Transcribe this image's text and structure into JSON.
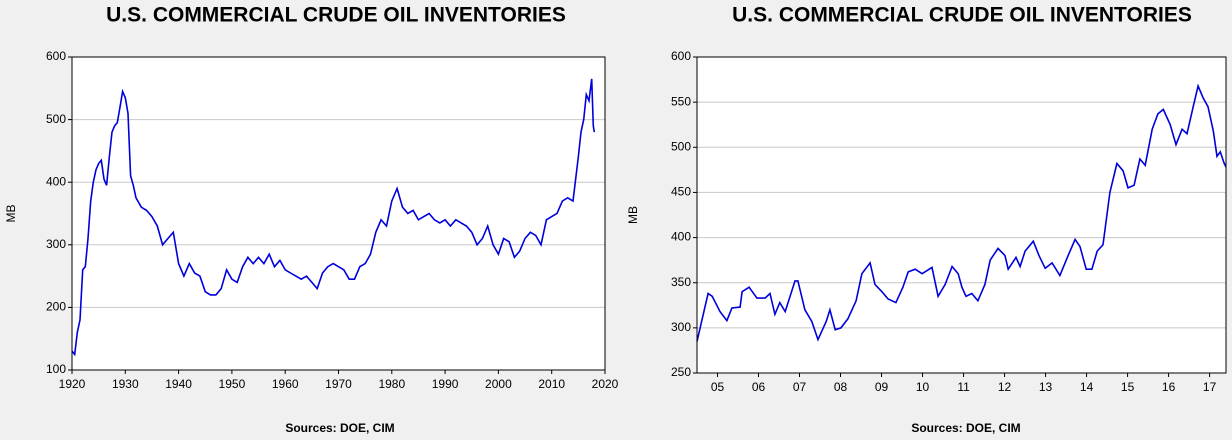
{
  "chart_data": [
    {
      "type": "line",
      "title": "U.S. COMMERCIAL CRUDE OIL INVENTORIES",
      "y_label": "MB",
      "source": "Sources:  DOE, CIM",
      "color": "#0000dd",
      "grid": true,
      "xlim": [
        1920,
        2020
      ],
      "xticks": [
        1920,
        1930,
        1940,
        1950,
        1960,
        1970,
        1980,
        1990,
        2000,
        2010,
        2020
      ],
      "ylim": [
        100,
        600
      ],
      "yticks": [
        100,
        200,
        300,
        400,
        500,
        600
      ],
      "x": [
        1920,
        1920.5,
        1921,
        1921.5,
        1922,
        1922.5,
        1923,
        1923.5,
        1924,
        1924.5,
        1925,
        1925.5,
        1926,
        1926.5,
        1927,
        1927.5,
        1928,
        1928.5,
        1929,
        1929.5,
        1930,
        1930.5,
        1931,
        1931.5,
        1932,
        1933,
        1934,
        1935,
        1936,
        1937,
        1938,
        1939,
        1940,
        1941,
        1942,
        1943,
        1944,
        1945,
        1946,
        1947,
        1948,
        1949,
        1950,
        1951,
        1952,
        1953,
        1954,
        1955,
        1956,
        1957,
        1958,
        1959,
        1960,
        1961,
        1962,
        1963,
        1964,
        1965,
        1966,
        1967,
        1968,
        1969,
        1970,
        1971,
        1972,
        1973,
        1974,
        1975,
        1976,
        1977,
        1978,
        1979,
        1980,
        1981,
        1982,
        1983,
        1984,
        1985,
        1986,
        1987,
        1988,
        1989,
        1990,
        1991,
        1992,
        1993,
        1994,
        1995,
        1996,
        1997,
        1998,
        1999,
        2000,
        2001,
        2002,
        2003,
        2004,
        2005,
        2006,
        2007,
        2008,
        2009,
        2010,
        2011,
        2012,
        2013,
        2014,
        2015,
        2015.5,
        2016,
        2016.5,
        2017,
        2017.5,
        2017.8,
        2018
      ],
      "values": [
        130,
        125,
        160,
        180,
        260,
        265,
        310,
        370,
        400,
        420,
        430,
        435,
        405,
        395,
        440,
        480,
        490,
        495,
        520,
        545,
        535,
        510,
        410,
        395,
        375,
        360,
        355,
        345,
        330,
        300,
        310,
        320,
        270,
        250,
        270,
        255,
        250,
        225,
        220,
        220,
        230,
        260,
        245,
        240,
        265,
        280,
        270,
        280,
        270,
        285,
        265,
        275,
        260,
        255,
        250,
        245,
        250,
        240,
        230,
        255,
        265,
        270,
        265,
        260,
        245,
        245,
        265,
        270,
        285,
        320,
        340,
        330,
        370,
        390,
        360,
        350,
        355,
        340,
        345,
        350,
        340,
        335,
        340,
        330,
        340,
        335,
        330,
        320,
        300,
        310,
        330,
        300,
        285,
        310,
        305,
        280,
        290,
        310,
        320,
        315,
        300,
        340,
        345,
        350,
        370,
        375,
        370,
        440,
        480,
        500,
        540,
        530,
        565,
        490,
        480
      ]
    },
    {
      "type": "line",
      "title": "U.S. COMMERCIAL CRUDE OIL INVENTORIES",
      "y_label": "MB",
      "source": "Sources:  DOE, CIM",
      "color": "#0000dd",
      "grid": true,
      "xlim": [
        2005,
        2017.9
      ],
      "xticks": [
        {
          "value": 2005.5,
          "label": "05"
        },
        {
          "value": 2006.5,
          "label": "06"
        },
        {
          "value": 2007.5,
          "label": "07"
        },
        {
          "value": 2008.5,
          "label": "08"
        },
        {
          "value": 2009.5,
          "label": "09"
        },
        {
          "value": 2010.5,
          "label": "10"
        },
        {
          "value": 2011.5,
          "label": "11"
        },
        {
          "value": 2012.5,
          "label": "12"
        },
        {
          "value": 2013.5,
          "label": "13"
        },
        {
          "value": 2014.5,
          "label": "14"
        },
        {
          "value": 2015.5,
          "label": "15"
        },
        {
          "value": 2016.5,
          "label": "16"
        },
        {
          "value": 2017.5,
          "label": "17"
        }
      ],
      "ylim": [
        250,
        600
      ],
      "yticks": [
        250,
        300,
        350,
        400,
        450,
        500,
        550,
        600
      ],
      "x": [
        2005.0,
        2005.27,
        2005.37,
        2005.56,
        2005.73,
        2005.85,
        2006.05,
        2006.1,
        2006.27,
        2006.46,
        2006.66,
        2006.78,
        2006.9,
        2007.02,
        2007.15,
        2007.39,
        2007.46,
        2007.63,
        2007.8,
        2007.95,
        2008.15,
        2008.24,
        2008.37,
        2008.51,
        2008.68,
        2008.88,
        2009.02,
        2009.22,
        2009.34,
        2009.51,
        2009.66,
        2009.85,
        2010.02,
        2010.15,
        2010.32,
        2010.49,
        2010.73,
        2010.88,
        2011.05,
        2011.22,
        2011.37,
        2011.46,
        2011.56,
        2011.7,
        2011.85,
        2012.02,
        2012.15,
        2012.34,
        2012.51,
        2012.59,
        2012.78,
        2012.88,
        2013.0,
        2013.2,
        2013.34,
        2013.49,
        2013.66,
        2013.85,
        2014.05,
        2014.22,
        2014.34,
        2014.49,
        2014.63,
        2014.76,
        2014.9,
        2015.07,
        2015.24,
        2015.39,
        2015.51,
        2015.66,
        2015.8,
        2015.93,
        2016.1,
        2016.24,
        2016.37,
        2016.54,
        2016.68,
        2016.83,
        2016.95,
        2017.1,
        2017.22,
        2017.34,
        2017.46,
        2017.59,
        2017.68,
        2017.76,
        2017.85,
        2017.9
      ],
      "values": [
        285,
        338,
        335,
        318,
        308,
        322,
        323,
        340,
        345,
        333,
        333,
        338,
        315,
        328,
        318,
        352,
        352,
        320,
        307,
        287,
        307,
        320,
        298,
        300,
        310,
        330,
        360,
        372,
        348,
        340,
        332,
        328,
        345,
        362,
        365,
        360,
        367,
        335,
        348,
        368,
        360,
        345,
        335,
        338,
        330,
        348,
        375,
        388,
        380,
        365,
        378,
        368,
        385,
        396,
        380,
        366,
        372,
        358,
        380,
        398,
        390,
        365,
        365,
        385,
        392,
        450,
        482,
        474,
        455,
        458,
        487,
        480,
        520,
        537,
        542,
        525,
        503,
        520,
        515,
        545,
        568,
        555,
        545,
        518,
        490,
        495,
        483,
        478
      ]
    }
  ]
}
